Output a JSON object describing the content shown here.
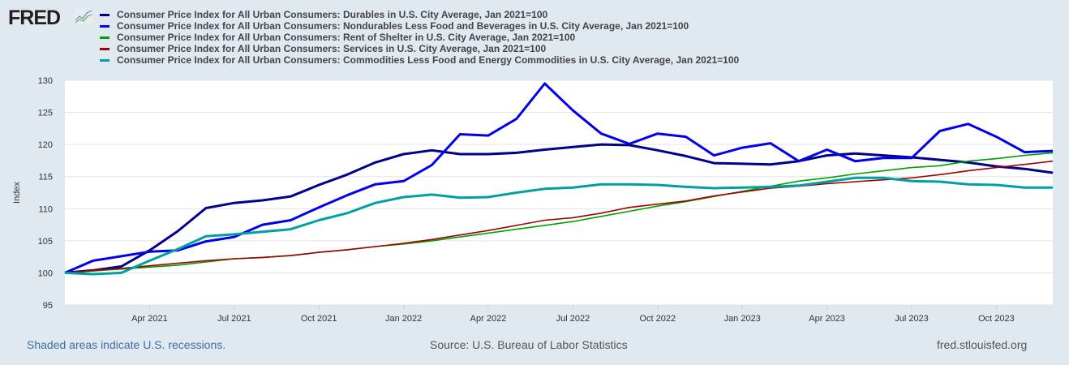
{
  "logo": {
    "text": "FRED"
  },
  "chart_data": {
    "type": "line",
    "ylabel": "Index",
    "ylim": [
      95,
      130
    ],
    "yticks": [
      95,
      100,
      105,
      110,
      115,
      120,
      125,
      130
    ],
    "grid": true,
    "x_start": "2021-01",
    "x_frequency": "monthly",
    "xtick_labels": [
      "Apr 2021",
      "Jul 2021",
      "Oct 2021",
      "Jan 2022",
      "Apr 2022",
      "Jul 2022",
      "Oct 2022",
      "Jan 2023",
      "Apr 2023",
      "Jul 2023",
      "Oct 2023"
    ],
    "xtick_month_index": [
      3,
      6,
      9,
      12,
      15,
      18,
      21,
      24,
      27,
      30,
      33
    ],
    "legend_placement": "top",
    "series": [
      {
        "name": "Consumer Price Index for All Urban Consumers: Durables in U.S. City Average, Jan 2021=100",
        "color": "#00008b",
        "width": 3,
        "values": [
          100,
          100.4,
          101.0,
          103.5,
          106.5,
          110.1,
          110.9,
          111.3,
          111.9,
          113.7,
          115.3,
          117.2,
          118.5,
          119.1,
          118.5,
          118.5,
          118.7,
          119.2,
          119.6,
          120.0,
          119.9,
          119.1,
          118.2,
          117.1,
          117.0,
          116.9,
          117.4,
          118.3,
          118.6,
          118.3,
          118.0,
          117.6,
          117.2,
          116.6,
          116.2,
          115.6
        ]
      },
      {
        "name": "Consumer Price Index for All Urban Consumers: Nondurables Less Food and Beverages in U.S. City Average, Jan 2021=100",
        "color": "#0000ee",
        "width": 3,
        "values": [
          100,
          101.9,
          102.6,
          103.3,
          103.5,
          104.9,
          105.6,
          107.5,
          108.2,
          110.2,
          112.1,
          113.8,
          114.3,
          116.8,
          121.6,
          121.4,
          124.0,
          129.5,
          125.3,
          121.7,
          120.1,
          121.7,
          121.2,
          118.3,
          119.5,
          120.2,
          117.4,
          119.2,
          117.4,
          117.9,
          117.9,
          122.1,
          123.2,
          121.2,
          118.8,
          119.0
        ]
      },
      {
        "name": "Consumer Price Index for All Urban Consumers: Rent of Shelter in U.S. City Average, Jan 2021=100",
        "color": "#00a000",
        "width": 1.6,
        "values": [
          100,
          100.3,
          100.6,
          100.9,
          101.2,
          101.7,
          102.2,
          102.4,
          102.7,
          103.2,
          103.6,
          104.1,
          104.5,
          105.0,
          105.6,
          106.2,
          106.8,
          107.4,
          108.0,
          108.8,
          109.6,
          110.4,
          111.1,
          111.9,
          112.7,
          113.5,
          114.3,
          114.8,
          115.4,
          115.9,
          116.4,
          116.7,
          117.4,
          117.8,
          118.3,
          118.7
        ]
      },
      {
        "name": "Consumer Price Index for All Urban Consumers: Services in U.S. City Average, Jan 2021=100",
        "color": "#a00000",
        "width": 1.6,
        "values": [
          100,
          100.4,
          100.7,
          101.1,
          101.5,
          101.9,
          102.2,
          102.4,
          102.7,
          103.2,
          103.6,
          104.1,
          104.6,
          105.2,
          105.9,
          106.6,
          107.4,
          108.2,
          108.6,
          109.3,
          110.2,
          110.7,
          111.2,
          112.0,
          112.6,
          113.2,
          113.5,
          113.9,
          114.2,
          114.5,
          114.8,
          115.3,
          115.9,
          116.4,
          116.9,
          117.4
        ]
      },
      {
        "name": "Consumer Price Index for All Urban Consumers: Commodities Less Food and Energy Commodities in U.S. City Average, Jan 2021=100",
        "color": "#00a0a0",
        "width": 3,
        "values": [
          100,
          99.8,
          100.0,
          101.9,
          103.7,
          105.7,
          106.0,
          106.4,
          106.8,
          108.2,
          109.3,
          110.9,
          111.8,
          112.2,
          111.7,
          111.8,
          112.5,
          113.1,
          113.3,
          113.8,
          113.8,
          113.7,
          113.4,
          113.2,
          113.3,
          113.4,
          113.6,
          114.2,
          114.8,
          114.8,
          114.3,
          114.2,
          113.8,
          113.7,
          113.3,
          113.3
        ]
      }
    ]
  },
  "footer": {
    "recessions_note": "Shaded areas indicate U.S. recessions.",
    "source": "Source: U.S. Bureau of Labor Statistics",
    "site": "fred.stlouisfed.org"
  }
}
